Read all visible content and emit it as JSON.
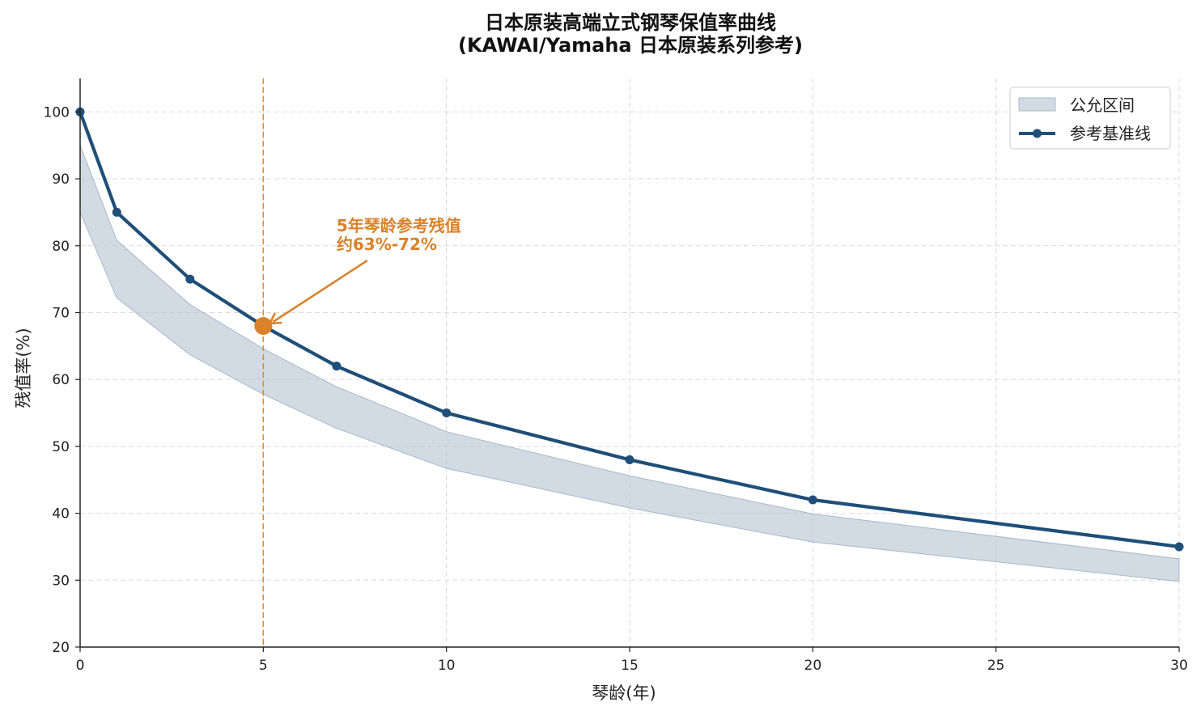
{
  "chart_data": {
    "type": "line",
    "title_line1": "日本原装高端立式钢琴保值率曲线",
    "title_line2": "(KAWAI/Yamaha 日本原装系列参考)",
    "xlabel": "琴龄(年)",
    "ylabel": "残值率(%)",
    "xlim": [
      0,
      30
    ],
    "ylim": [
      20,
      105
    ],
    "xticks": [
      0,
      5,
      10,
      15,
      20,
      25,
      30
    ],
    "yticks": [
      20,
      30,
      40,
      50,
      60,
      70,
      80,
      90,
      100
    ],
    "grid": true,
    "legend_position": "top-right",
    "series": [
      {
        "name": "参考基准线",
        "color": "#1f4e79",
        "x": [
          0,
          1,
          3,
          5,
          7,
          10,
          15,
          20,
          30
        ],
        "y": [
          100,
          85,
          75,
          68,
          62,
          55,
          48,
          42,
          35
        ]
      }
    ],
    "band": {
      "name": "公允区间",
      "color": "#b6c4d4",
      "x": [
        0,
        1,
        3,
        5,
        7,
        10,
        15,
        20,
        30
      ],
      "upper": [
        95,
        80.8,
        71.2,
        64.6,
        58.9,
        52.2,
        45.6,
        39.9,
        33.2
      ],
      "lower": [
        85,
        72.2,
        63.7,
        57.8,
        52.7,
        46.7,
        40.8,
        35.7,
        29.8
      ]
    },
    "vline": {
      "x": 5,
      "color": "#e08a2c"
    },
    "highlight_point": {
      "x": 5,
      "y": 68,
      "color": "#d9822b"
    },
    "annotation": {
      "line1": "5年琴龄参考残值",
      "line2": "约63%-72%",
      "color": "#d9822b",
      "text_x": 7,
      "text_y": 79
    }
  }
}
